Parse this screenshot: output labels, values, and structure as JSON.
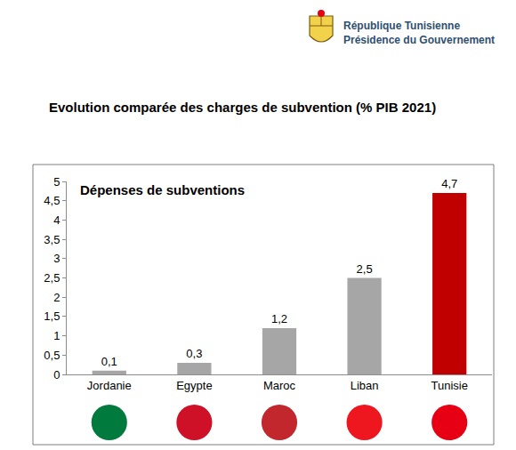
{
  "header": {
    "lines": [
      "République Tunisienne",
      "Présidence du Gouvernement"
    ]
  },
  "chart_data": {
    "type": "bar",
    "title": "Evolution comparée des charges de subvention (% PIB 2021)",
    "subtitle": "Dépenses de subventions",
    "categories": [
      "Jordanie",
      "Egypte",
      "Maroc",
      "Liban",
      "Tunisie"
    ],
    "values": [
      0.1,
      0.3,
      1.2,
      2.5,
      4.7
    ],
    "value_labels": [
      "0,1",
      "0,3",
      "1,2",
      "2,5",
      "4,7"
    ],
    "colors": [
      "#a6a6a6",
      "#a6a6a6",
      "#a6a6a6",
      "#a6a6a6",
      "#c00000"
    ],
    "ylim": [
      0,
      5
    ],
    "yticks": [
      0,
      {
        "value": 0.5,
        "label": "0,5"
      },
      1,
      {
        "value": 1.5,
        "label": "1,5"
      },
      2,
      {
        "value": 2.5,
        "label": "2,5"
      },
      3,
      {
        "value": 3.5,
        "label": "3,5"
      },
      4,
      {
        "value": 4.5,
        "label": "4,5"
      },
      5
    ],
    "grid": false,
    "data_labels": true
  }
}
